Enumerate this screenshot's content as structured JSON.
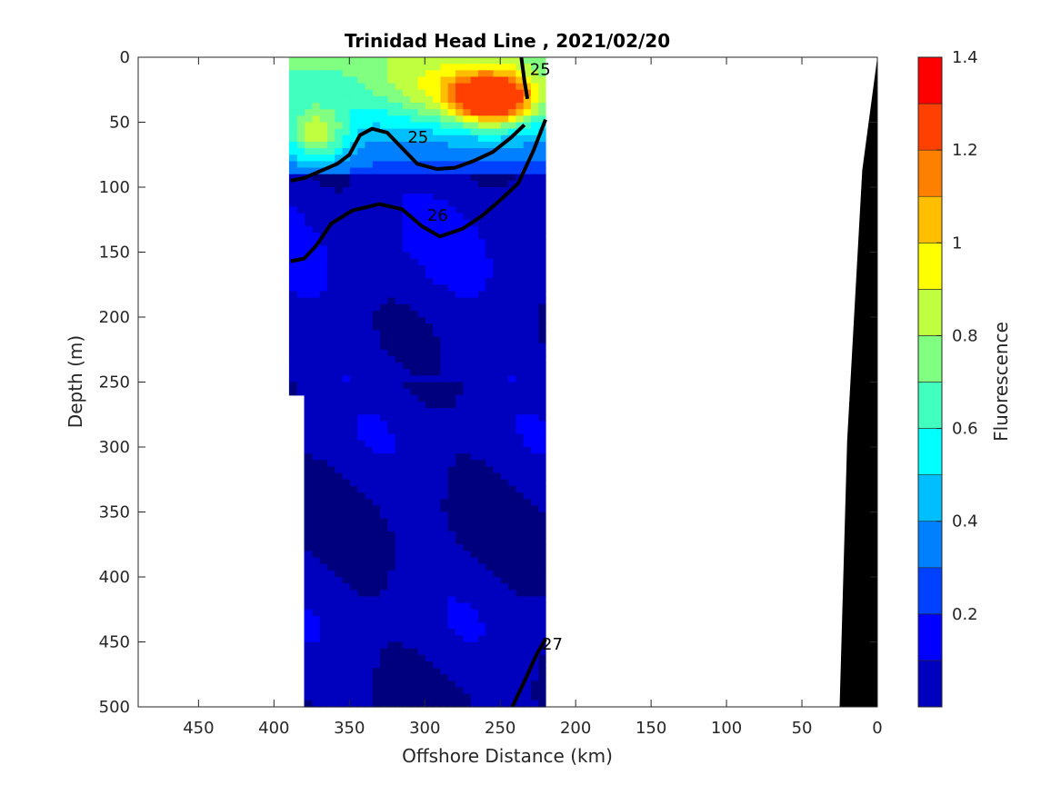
{
  "chart_data": {
    "type": "contour",
    "title": "Trinidad Head Line , 2021/02/20",
    "xlabel": "Offshore Distance (km)",
    "ylabel": "Depth (m)",
    "colorbar_label": "Fluorescence",
    "xlim": [
      490,
      0
    ],
    "ylim": [
      500,
      0
    ],
    "x_reversed": true,
    "y_reversed": true,
    "x_ticks": [
      450,
      400,
      350,
      300,
      250,
      200,
      150,
      100,
      50,
      0
    ],
    "y_ticks": [
      0,
      50,
      100,
      150,
      200,
      250,
      300,
      350,
      400,
      450,
      500
    ],
    "colorbar_range": [
      0,
      1.4
    ],
    "colorbar_levels": [
      0,
      0.1,
      0.2,
      0.3,
      0.4,
      0.5,
      0.6,
      0.7,
      0.8,
      0.9,
      1.0,
      1.1,
      1.2,
      1.3,
      1.4
    ],
    "colorbar_ticks": [
      0.2,
      0.4,
      0.6,
      0.8,
      1,
      1.2,
      1.4
    ],
    "colormap": [
      "#00007f",
      "#0000bf",
      "#0000ff",
      "#0040ff",
      "#0080ff",
      "#00bfff",
      "#00ffff",
      "#40ffbf",
      "#80ff80",
      "#bfff40",
      "#ffff00",
      "#ffbf00",
      "#ff8000",
      "#ff4000",
      "#ff0000",
      "#bf0000"
    ],
    "data_extent": {
      "x_range": [
        390,
        220
      ],
      "y_range": [
        0,
        500
      ],
      "upper_layer_depth": [
        0,
        90
      ]
    },
    "isopycnals": [
      {
        "label": "25",
        "points": [
          [
            389,
            95
          ],
          [
            380,
            93
          ],
          [
            370,
            88
          ],
          [
            358,
            82
          ],
          [
            350,
            75
          ],
          [
            343,
            60
          ],
          [
            335,
            55
          ],
          [
            325,
            58
          ],
          [
            315,
            70
          ],
          [
            305,
            82
          ],
          [
            292,
            86
          ],
          [
            280,
            85
          ],
          [
            268,
            80
          ],
          [
            255,
            73
          ],
          [
            243,
            62
          ],
          [
            234,
            52
          ]
        ]
      },
      {
        "label": "25",
        "points": [
          [
            232,
            32
          ],
          [
            234,
            18
          ],
          [
            236,
            0
          ]
        ]
      },
      {
        "label": "26",
        "points": [
          [
            389,
            157
          ],
          [
            380,
            155
          ],
          [
            372,
            145
          ],
          [
            362,
            128
          ],
          [
            348,
            118
          ],
          [
            330,
            113
          ],
          [
            315,
            117
          ],
          [
            302,
            130
          ],
          [
            290,
            138
          ],
          [
            275,
            132
          ],
          [
            262,
            122
          ],
          [
            250,
            110
          ],
          [
            238,
            97
          ],
          [
            228,
            72
          ],
          [
            220,
            48
          ]
        ]
      },
      {
        "label": "27",
        "points": [
          [
            242,
            500
          ],
          [
            233,
            478
          ],
          [
            226,
            460
          ],
          [
            220,
            448
          ]
        ]
      }
    ],
    "bathymetry": {
      "color": "#000000",
      "points": [
        [
          0,
          0
        ],
        [
          10,
          87
        ],
        [
          20,
          295
        ],
        [
          25,
          500
        ],
        [
          0,
          500
        ]
      ]
    }
  }
}
